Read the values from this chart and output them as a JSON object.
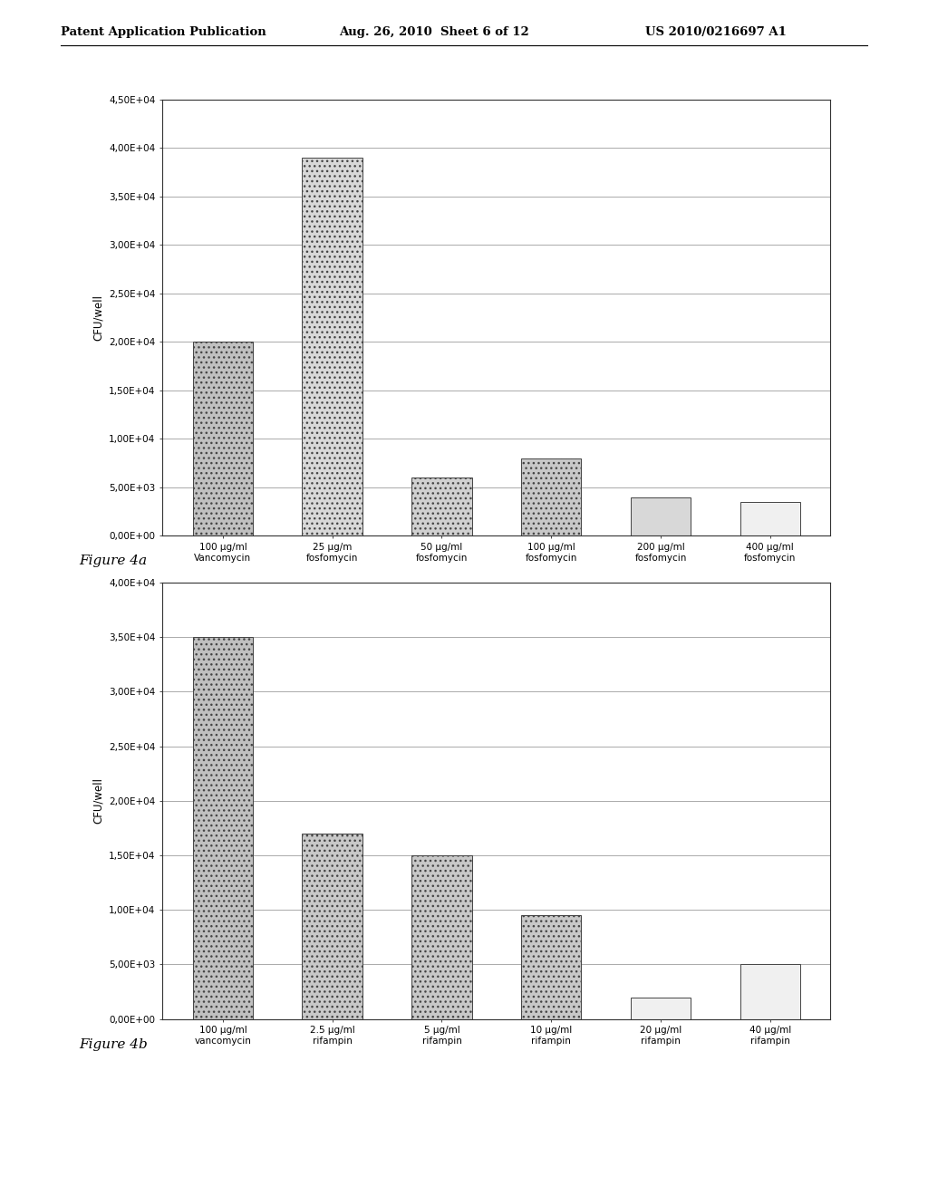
{
  "header_left": "Patent Application Publication",
  "header_mid": "Aug. 26, 2010  Sheet 6 of 12",
  "header_right": "US 2010/0216697 A1",
  "figure4a": {
    "categories": [
      "100 μg/ml\nVancomycin",
      "25 μg/m\nfosfomycin",
      "50 μg/ml\nfosfomycin",
      "100 μg/ml\nfosfomycin",
      "200 μg/ml\nfosfomycin",
      "400 μg/ml\nfosfomycin"
    ],
    "values": [
      20000,
      39000,
      6000,
      8000,
      4000,
      3500
    ],
    "ylabel": "CFU/well",
    "ylim": [
      0,
      45000
    ],
    "yticks": [
      0,
      5000,
      10000,
      15000,
      20000,
      25000,
      30000,
      35000,
      40000,
      45000
    ],
    "ytick_labels": [
      "0,00E+00",
      "5,00E+03",
      "1,00E+04",
      "1,50E+04",
      "2,00E+04",
      "2,50E+04",
      "3,00E+04",
      "3,50E+04",
      "4,00E+04",
      "4,50E+04"
    ],
    "bar_colors": [
      "#c0c0c0",
      "#d8d8d8",
      "#d0d0d0",
      "#c8c8c8",
      "#d8d8d8",
      "#f0f0f0"
    ],
    "hatch": [
      "...",
      "...",
      "...",
      "...",
      "",
      ""
    ],
    "figure_label": "Figure 4a"
  },
  "figure4b": {
    "categories": [
      "100 μg/ml\nvancomycin",
      "2.5 μg/ml\nrifampin",
      "5 μg/ml\nrifampin",
      "10 μg/ml\nrifampin",
      "20 μg/ml\nrifampin",
      "40 μg/ml\nrifampin"
    ],
    "values": [
      35000,
      17000,
      15000,
      9500,
      2000,
      5000
    ],
    "ylabel": "CFU/well",
    "ylim": [
      0,
      40000
    ],
    "yticks": [
      0,
      5000,
      10000,
      15000,
      20000,
      25000,
      30000,
      35000,
      40000
    ],
    "ytick_labels": [
      "0,00E+00",
      "5,00E+03",
      "1,00E+04",
      "1,50E+04",
      "2,00E+04",
      "2,50E+04",
      "3,00E+04",
      "3,50E+04",
      "4,00E+04"
    ],
    "bar_colors": [
      "#c0c0c0",
      "#c8c8c8",
      "#c8c8c8",
      "#c8c8c8",
      "#f0f0f0",
      "#f0f0f0"
    ],
    "hatch": [
      "...",
      "...",
      "...",
      "...",
      "",
      ""
    ],
    "figure_label": "Figure 4b"
  },
  "background_color": "#ffffff",
  "chart_bg": "#ffffff",
  "border_color": "#333333"
}
